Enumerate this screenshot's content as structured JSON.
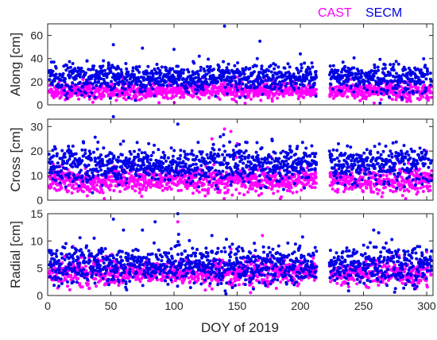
{
  "chart_data": {
    "type": "scatter",
    "xlabel": "DOY of 2019",
    "xlim": [
      0,
      305
    ],
    "xticks": [
      0,
      50,
      100,
      150,
      200,
      250,
      300
    ],
    "legend": {
      "placement": "top-right",
      "entries": [
        {
          "name": "CAST",
          "color": "#ff00ff"
        },
        {
          "name": "SECM",
          "color": "#0000e6"
        }
      ]
    },
    "panels": [
      {
        "ylabel": "Along [cm]",
        "ylim": [
          0,
          70
        ],
        "yticks": [
          0,
          20,
          40,
          60
        ],
        "series": [
          {
            "name": "CAST",
            "color": "#ff00ff",
            "mean": 12,
            "spread": 3.5,
            "outliers": [
              [
                28,
                22
              ],
              [
                60,
                24
              ],
              [
                150,
                24
              ],
              [
                240,
                22
              ]
            ]
          },
          {
            "name": "SECM",
            "color": "#0000e6",
            "mean": 23,
            "spread": 6,
            "outliers": [
              [
                52,
                52
              ],
              [
                75,
                49
              ],
              [
                100,
                48
              ],
              [
                140,
                68
              ],
              [
                168,
                55
              ],
              [
                200,
                44
              ],
              [
                120,
                42
              ]
            ]
          }
        ]
      },
      {
        "ylabel": "Cross [cm]",
        "ylim": [
          0,
          33
        ],
        "yticks": [
          0,
          10,
          20,
          30
        ],
        "series": [
          {
            "name": "CAST",
            "color": "#ff00ff",
            "mean": 8,
            "spread": 2.5,
            "outliers": [
              [
                140,
                29
              ],
              [
                145,
                28
              ],
              [
                130,
                25
              ],
              [
                150,
                23
              ],
              [
                300,
                20
              ]
            ]
          },
          {
            "name": "SECM",
            "color": "#0000e6",
            "mean": 14.5,
            "spread": 3.5,
            "outliers": [
              [
                52,
                34
              ],
              [
                103,
                31
              ],
              [
                60,
                24
              ],
              [
                20,
                22
              ],
              [
                80,
                23
              ]
            ]
          }
        ]
      },
      {
        "ylabel": "Radial [cm]",
        "ylim": [
          0,
          15
        ],
        "yticks": [
          0,
          5,
          10,
          15
        ],
        "series": [
          {
            "name": "CAST",
            "color": "#ff00ff",
            "mean": 4.2,
            "spread": 1.1,
            "outliers": [
              [
                103,
                13.5
              ],
              [
                170,
                11
              ],
              [
                145,
                8.5
              ],
              [
                300,
                8
              ],
              [
                20,
                9
              ]
            ]
          },
          {
            "name": "SECM",
            "color": "#0000e6",
            "mean": 5.6,
            "spread": 1.7,
            "outliers": [
              [
                52,
                14
              ],
              [
                85,
                13.5
              ],
              [
                103,
                15
              ],
              [
                75,
                12
              ],
              [
                60,
                12
              ],
              [
                258,
                12
              ],
              [
                262,
                11.5
              ],
              [
                130,
                11
              ]
            ]
          }
        ]
      }
    ]
  }
}
